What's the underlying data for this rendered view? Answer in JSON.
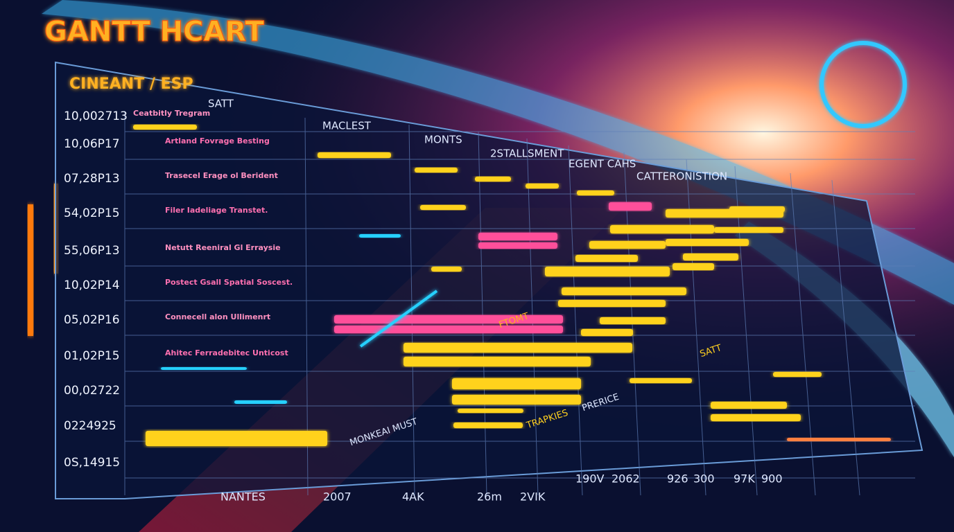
{
  "header": {
    "title": "GANTT HCART",
    "panel_title": "CINEANT / ESP",
    "columns": [
      "SATT",
      "MACLEST",
      "MONTS",
      "2STALLSMENT",
      "EGENT CAHS",
      "CATTERONISTION"
    ]
  },
  "rows": [
    {
      "code": "10,002713",
      "task": "Ceatbitly Tregram"
    },
    {
      "code": "10,06P17",
      "task": "Artland Fovrage Besting"
    },
    {
      "code": "07,28P13",
      "task": "Trasecel Erage ol Berident"
    },
    {
      "code": "54,02P15",
      "task": "Filer Iadeliage Transtet."
    },
    {
      "code": "55,06P13",
      "task": "Netutt Reeniral Gl Erraysie"
    },
    {
      "code": "10,02P14",
      "task": "Postect Gsall Spatial Soscest."
    },
    {
      "code": "05,02P16",
      "task": "Connecell alon Ullimenrt"
    },
    {
      "code": "01,02P15",
      "task": "Ahitec Ferradebitec Unticost"
    },
    {
      "code": "00,02722",
      "task": null
    },
    {
      "code": "0224925",
      "task": null
    },
    {
      "code": "0S,14915",
      "task": null
    }
  ],
  "annotations": [
    "MONKEAI MUST",
    "TRAPKIES",
    "PRERICE",
    "FTOMT",
    "SATT"
  ],
  "footer": [
    "NANTES",
    "2007",
    "4AK",
    "26m",
    "2VIK",
    "190V",
    "2062",
    "926",
    "300",
    "97K",
    "900"
  ]
}
